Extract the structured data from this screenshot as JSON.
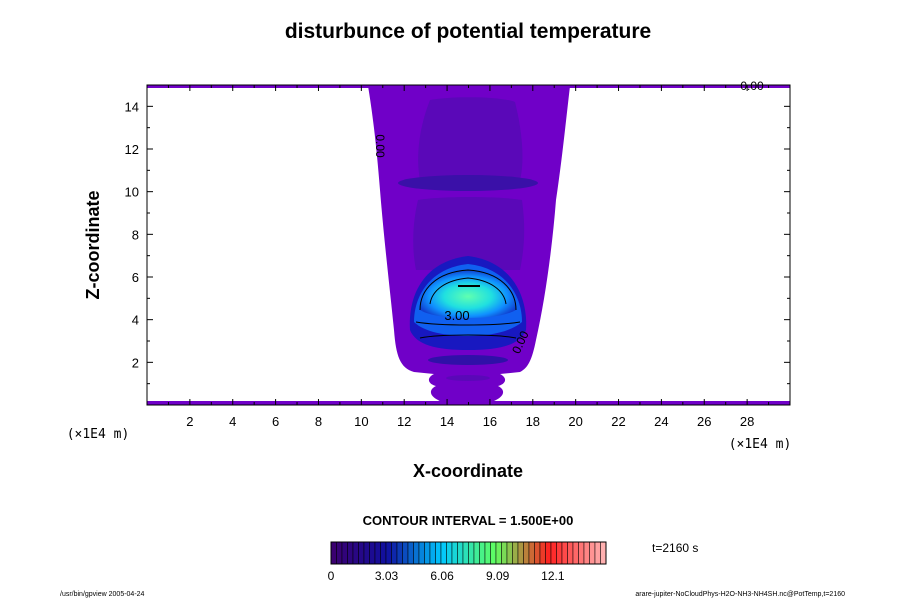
{
  "chart_data": {
    "type": "contour",
    "title": "disturbunce of potential temperature",
    "xlabel": "X-coordinate",
    "ylabel": "Z-coordinate",
    "x_unit": "(×1E4 m)",
    "z_unit": "(×1E4 m)",
    "xlim": [
      0,
      30
    ],
    "ylim": [
      0,
      15
    ],
    "x_ticks": [
      2,
      4,
      6,
      8,
      10,
      12,
      14,
      16,
      18,
      20,
      22,
      24,
      26,
      28
    ],
    "y_ticks": [
      2,
      4,
      6,
      8,
      10,
      12,
      14
    ],
    "contour_interval_text": "CONTOUR INTERVAL = 1.500E+00",
    "contour_interval": 1.5,
    "time_text": "t=2160 s",
    "contour_labels": [
      "0.00",
      "0.00",
      "3.00",
      "0.00"
    ],
    "colorbar": {
      "min": 0,
      "max": 15,
      "ticks": [
        "0",
        "3.03",
        "6.06",
        "9.09",
        "12.1"
      ],
      "colors": [
        "#3a0070",
        "#1010a0",
        "#00c8ff",
        "#60ff60",
        "#ff2020",
        "#ffb0b0"
      ]
    },
    "background_fill_color": "#7000c8",
    "shape": {
      "plume_center_x": 15,
      "plume_top_z": 15,
      "plume_bottom_z": 0.2,
      "warm_core_center_z": 5.6,
      "warm_core_max_value": 6.0
    }
  },
  "footer": {
    "left": "/usr/bin/gpview 2005-04-24",
    "right": "arare-jupiter-NoCloudPhys-H2O-NH3-NH4SH.nc@PotTemp,t=2160"
  }
}
